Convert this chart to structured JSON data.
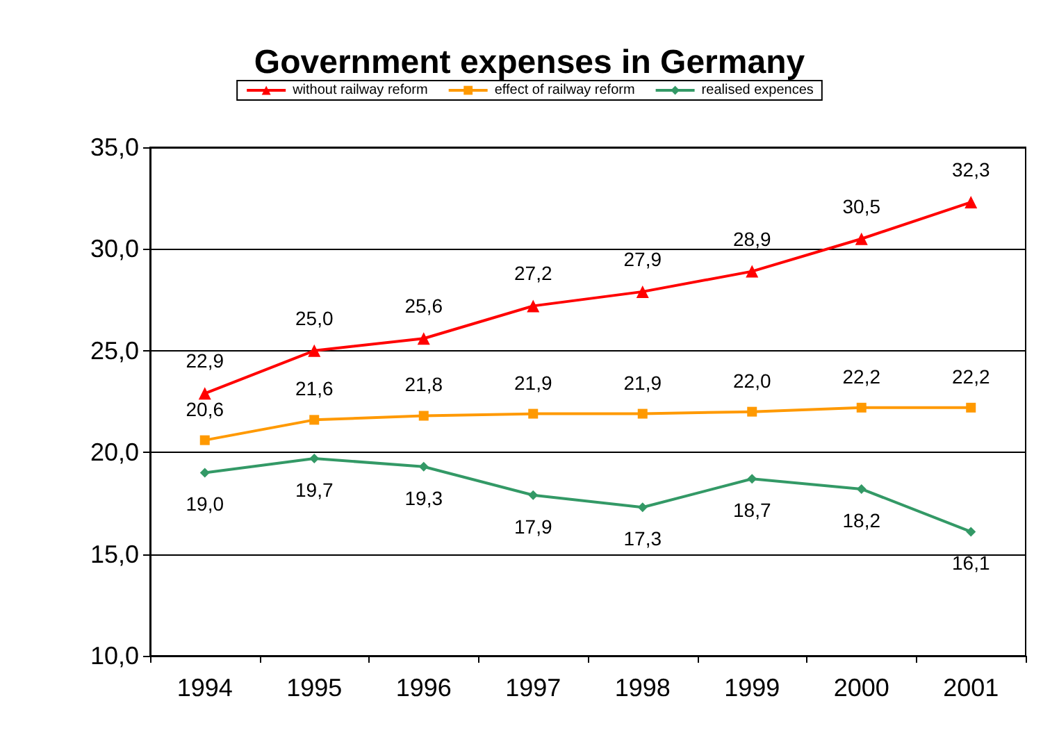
{
  "chart_data": {
    "type": "line",
    "title": "Government expenses in Germany",
    "categories": [
      "1994",
      "1995",
      "1996",
      "1997",
      "1998",
      "1999",
      "2000",
      "2001"
    ],
    "series": [
      {
        "name": "without railway reform",
        "color": "#ff0000",
        "marker": "triangle",
        "values": [
          22.9,
          25.0,
          25.6,
          27.2,
          27.9,
          28.9,
          30.5,
          32.3
        ],
        "value_labels": [
          "22,9",
          "25,0",
          "25,6",
          "27,2",
          "27,9",
          "28,9",
          "30,5",
          "32,3"
        ]
      },
      {
        "name": "effect of railway reform",
        "color": "#ff9900",
        "marker": "square",
        "values": [
          20.6,
          21.6,
          21.8,
          21.9,
          21.9,
          22.0,
          22.2,
          22.2
        ],
        "value_labels": [
          "20,6",
          "21,6",
          "21,8",
          "21,9",
          "21,9",
          "22,0",
          "22,2",
          "22,2"
        ]
      },
      {
        "name": "realised expences",
        "color": "#339966",
        "marker": "diamond",
        "values": [
          19.0,
          19.7,
          19.3,
          17.9,
          17.3,
          18.7,
          18.2,
          16.1
        ],
        "value_labels": [
          "19,0",
          "19,7",
          "19,3",
          "17,9",
          "17,3",
          "18,7",
          "18,2",
          "16,1"
        ]
      }
    ],
    "ylim": [
      10,
      35
    ],
    "yticks": [
      {
        "value": 10,
        "label": "10,0"
      },
      {
        "value": 15,
        "label": "15,0"
      },
      {
        "value": 20,
        "label": "20,0"
      },
      {
        "value": 25,
        "label": "25,0"
      },
      {
        "value": 30,
        "label": "30,0"
      },
      {
        "value": 35,
        "label": "35,0"
      }
    ],
    "grid": "y",
    "legend": "top",
    "line_style": "solid"
  }
}
